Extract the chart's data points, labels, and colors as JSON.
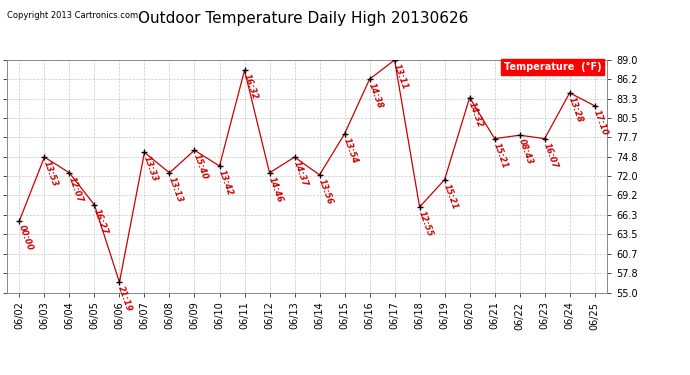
{
  "title": "Outdoor Temperature Daily High 20130626",
  "copyright": "Copyright 2013 Cartronics.com",
  "legend_label": "Temperature  (°F)",
  "background_color": "#ffffff",
  "plot_bg_color": "#ffffff",
  "grid_color": "#c8c8c8",
  "line_color": "#cc0000",
  "marker_color": "#000000",
  "label_color": "#cc0000",
  "ylim": [
    55.0,
    89.0
  ],
  "yticks": [
    55.0,
    57.8,
    60.7,
    63.5,
    66.3,
    69.2,
    72.0,
    74.8,
    77.7,
    80.5,
    83.3,
    86.2,
    89.0
  ],
  "dates": [
    "06/02",
    "06/03",
    "06/04",
    "06/05",
    "06/06",
    "06/07",
    "06/08",
    "06/09",
    "06/10",
    "06/11",
    "06/12",
    "06/13",
    "06/14",
    "06/15",
    "06/16",
    "06/17",
    "06/18",
    "06/19",
    "06/20",
    "06/21",
    "06/22",
    "06/23",
    "06/24",
    "06/25"
  ],
  "values": [
    65.5,
    74.8,
    72.5,
    67.8,
    56.5,
    75.5,
    72.5,
    75.8,
    73.5,
    87.5,
    72.5,
    74.8,
    72.2,
    78.2,
    86.2,
    89.0,
    67.5,
    71.5,
    83.5,
    77.5,
    78.0,
    77.5,
    84.2,
    82.3
  ],
  "time_labels": [
    "00:00",
    "13:53",
    "12:07",
    "16:27",
    "21:19",
    "13:33",
    "13:13",
    "15:40",
    "13:42",
    "16:32",
    "14:46",
    "14:37",
    "13:56",
    "13:54",
    "14:38",
    "13:11",
    "12:55",
    "15:21",
    "14:32",
    "15:21",
    "08:43",
    "16:07",
    "13:28",
    "17:10"
  ],
  "title_fontsize": 11,
  "label_fontsize": 6,
  "tick_fontsize": 7,
  "copyright_fontsize": 6,
  "legend_fontsize": 7
}
